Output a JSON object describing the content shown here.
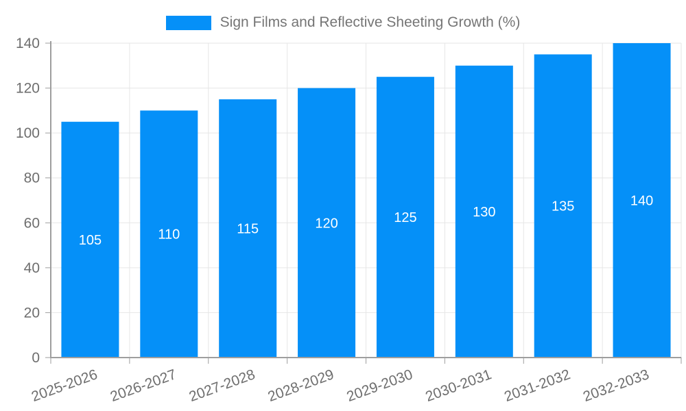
{
  "chart_data": {
    "type": "bar",
    "legend_label": "Sign Films and Reflective Sheeting Growth (%)",
    "categories": [
      "2025-2026",
      "2026-2027",
      "2027-2028",
      "2028-2029",
      "2029-2030",
      "2030-2031",
      "2031-2032",
      "2032-2033"
    ],
    "values": [
      105,
      110,
      115,
      120,
      125,
      130,
      135,
      140
    ],
    "ylim": [
      0,
      140
    ],
    "yticks": [
      0,
      20,
      40,
      60,
      80,
      100,
      120,
      140
    ],
    "legend_position": "top-center",
    "grid": true,
    "bar_label_position": "inside-center",
    "xlabel": "",
    "ylabel": "",
    "colors": {
      "bar": "#0590f8",
      "legend_text": "#757575",
      "axis_text": "#6e6e6e",
      "bar_label": "#ffffff",
      "gridline": "#e6e6e6",
      "axis_line": "#9e9e9e"
    }
  }
}
